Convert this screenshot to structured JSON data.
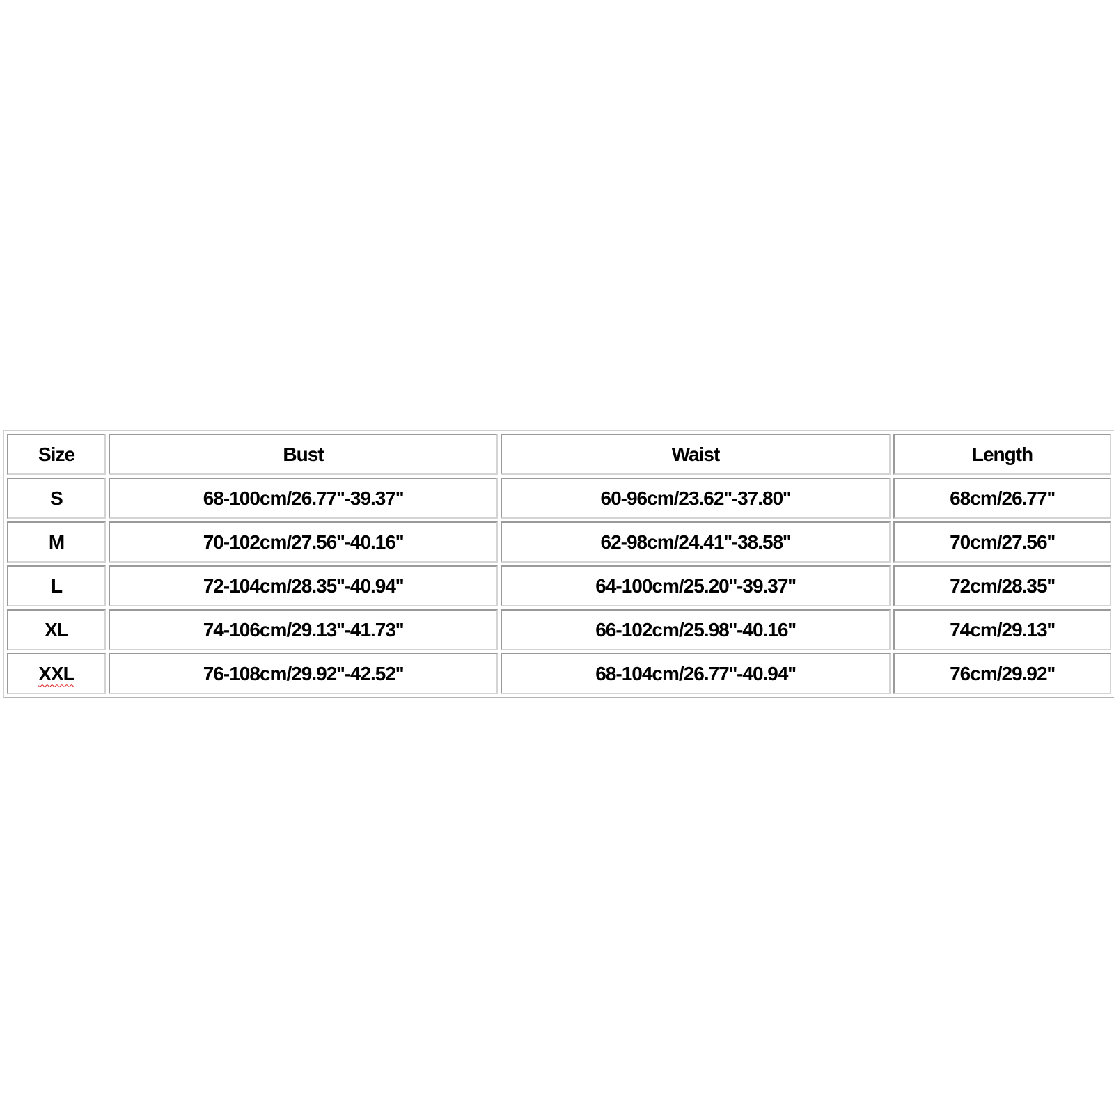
{
  "table": {
    "headers": [
      "Size",
      "Bust",
      "Waist",
      "Length"
    ],
    "rows": [
      [
        "S",
        "68-100cm/26.77''-39.37''",
        "60-96cm/23.62''-37.80''",
        "68cm/26.77''"
      ],
      [
        "M",
        "70-102cm/27.56''-40.16''",
        "62-98cm/24.41''-38.58''",
        "70cm/27.56''"
      ],
      [
        "L",
        "72-104cm/28.35''-40.94''",
        "64-100cm/25.20''-39.37''",
        "72cm/28.35''"
      ],
      [
        "XL",
        "74-106cm/29.13''-41.73''",
        "66-102cm/25.98''-40.16''",
        "74cm/29.13''"
      ],
      [
        "XXL",
        "76-108cm/29.92''-42.52''",
        "68-104cm/26.77''-40.94''",
        "76cm/29.92''"
      ]
    ]
  }
}
